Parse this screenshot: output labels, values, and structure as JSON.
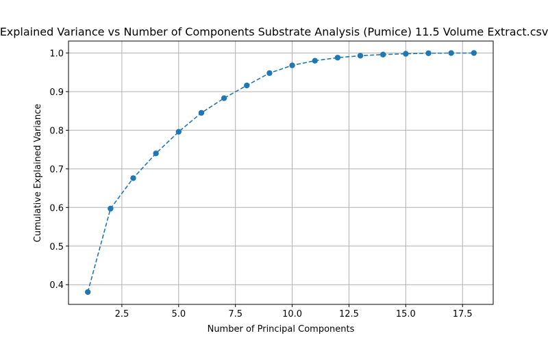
{
  "chart_data": {
    "type": "line",
    "title": "Explained Variance vs Number of Components Substrate Analysis (Pumice) 11.5 Volume Extract.csv",
    "xlabel": "Number of Principal Components",
    "ylabel": "Cumulative Explained Variance",
    "xlim": [
      0.15,
      18.85
    ],
    "ylim": [
      0.349,
      1.031
    ],
    "xticks": [
      2.5,
      5.0,
      7.5,
      10.0,
      12.5,
      15.0,
      17.5
    ],
    "xtick_labels": [
      "2.5",
      "5.0",
      "7.5",
      "10.0",
      "12.5",
      "15.0",
      "17.5"
    ],
    "yticks": [
      0.4,
      0.5,
      0.6,
      0.7,
      0.8,
      0.9,
      1.0
    ],
    "ytick_labels": [
      "0.4",
      "0.5",
      "0.6",
      "0.7",
      "0.8",
      "0.9",
      "1.0"
    ],
    "grid": true,
    "line_style": "dashed",
    "marker": "circle",
    "color": "#1f77b4",
    "series": [
      {
        "x": [
          1,
          2,
          3,
          4,
          5,
          6,
          7,
          8,
          9,
          10,
          11,
          12,
          13,
          14,
          15,
          16,
          17,
          18
        ],
        "values": [
          0.381,
          0.597,
          0.676,
          0.74,
          0.796,
          0.845,
          0.883,
          0.916,
          0.948,
          0.968,
          0.98,
          0.988,
          0.993,
          0.996,
          0.998,
          0.9995,
          0.9999,
          1.0
        ]
      }
    ]
  }
}
